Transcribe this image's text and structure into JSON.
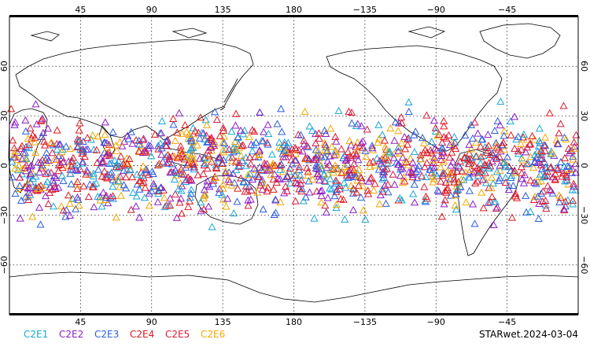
{
  "map": {
    "projection": "equirectangular",
    "lon_range": [
      0,
      360
    ],
    "lat_range": [
      -90,
      90
    ],
    "grid": true,
    "top_lon_ticks": [
      "45",
      "90",
      "135",
      "180",
      "−135",
      "−90",
      "−45"
    ],
    "bottom_lon_ticks": [
      "45",
      "90",
      "135",
      "180",
      "−135",
      "−90",
      "−45"
    ],
    "lat_ticks": [
      "60",
      "30",
      "0",
      "−30",
      "−60"
    ]
  },
  "legend": {
    "items": [
      {
        "label": "C2E1",
        "color": "#1aa6d8"
      },
      {
        "label": "C2E2",
        "color": "#8c1ec8"
      },
      {
        "label": "C2E3",
        "color": "#2a5de0"
      },
      {
        "label": "C2E4",
        "color": "#e0181e"
      },
      {
        "label": "C2E5",
        "color": "#d61a3a"
      },
      {
        "label": "C2E6",
        "color": "#f2a900"
      }
    ]
  },
  "caption": "STARwet.2024-03-04",
  "colors": {
    "coastline": "#000000",
    "grid": "#000000",
    "frame": "#000000",
    "background": "#ffffff"
  }
}
